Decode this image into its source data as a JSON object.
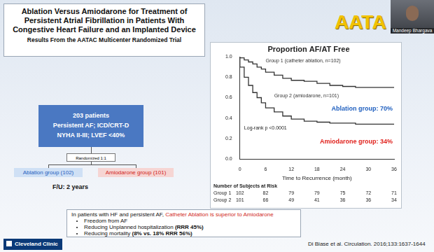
{
  "title": "Ablation Versus Amiodarone for Treatment of Persistent Atrial Fibrillation in Patients With Congestive Heart Failure and an Implanted Device",
  "subtitle": "Results From the AATAC Multicenter Randomized Trial",
  "heading": "AATA",
  "presenter": "Mandeep Bhargava",
  "flow": {
    "population": [
      "203 patients",
      "Persistent AF; ICD/CRT-D",
      "NYHA II-III; LVEF <40%"
    ],
    "randomized": "Randomized 1:1",
    "arms": [
      "Ablation group (102)",
      "Amiodarone group (101)"
    ],
    "follow_up": "F/U: 2 years"
  },
  "chart_data": {
    "type": "line",
    "title": "Proportion AF/AT Free",
    "x_label": "Time to Recurrence (month)",
    "line_style": "stepped",
    "grid": false,
    "x": [
      0,
      1,
      2,
      3,
      4,
      5,
      6,
      8,
      10,
      12,
      15,
      18,
      21,
      24,
      27,
      30,
      33,
      36
    ],
    "series": [
      {
        "name": "Group 1 (catheter ablation, n=102)",
        "color": "#333333",
        "values": [
          1.0,
          0.99,
          0.97,
          0.95,
          0.93,
          0.9,
          0.88,
          0.85,
          0.82,
          0.79,
          0.77,
          0.76,
          0.74,
          0.72,
          0.71,
          0.7,
          0.7,
          0.7
        ]
      },
      {
        "name": "Group 2 (amiodarone, n=101)",
        "color": "#333333",
        "values": [
          1.0,
          0.9,
          0.8,
          0.72,
          0.65,
          0.6,
          0.55,
          0.5,
          0.46,
          0.42,
          0.39,
          0.37,
          0.36,
          0.35,
          0.35,
          0.34,
          0.34,
          0.34
        ]
      }
    ],
    "xlim": [
      0,
      36
    ],
    "xticks": [
      0,
      6,
      12,
      18,
      24,
      30,
      36
    ],
    "ylim": [
      0,
      1
    ],
    "yticks": [
      {
        "value": 0,
        "label": "0.0"
      },
      0.2,
      0.4,
      0.6,
      0.8,
      {
        "value": 1,
        "label": "1.0"
      }
    ],
    "annotations": [
      {
        "text": "Log-rank p <0.0001",
        "color": "#222222"
      },
      {
        "text": "Ablation group: 70%",
        "color": "#1f5fbf"
      },
      {
        "text": "Amiodarone group: 34%",
        "color": "#e0201b"
      }
    ],
    "at_risk": {
      "title": "Number of Subjects at Risk",
      "rows": [
        {
          "label": "Group 1",
          "values": [
            102,
            82,
            79,
            79,
            75,
            72,
            71
          ]
        },
        {
          "label": "Group 2",
          "values": [
            101,
            66,
            49,
            41,
            36,
            36,
            34
          ]
        }
      ]
    }
  },
  "conclusion": {
    "lead": "In patients with HF and persistent AF,",
    "emphasis": "Catheter Ablation is superior to Amiodarone",
    "bullets": [
      {
        "text": "Freedom from AF"
      },
      {
        "text": "Reducing Unplanned hospitalization",
        "bold": "(RRR 45%)"
      },
      {
        "text": "Reducing mortality",
        "bold": "(8% vs. 18% RRR 56%)"
      }
    ]
  },
  "footer": {
    "logo": "Cleveland Clinic",
    "citation": "Di Biase et al. Circulation. 2016;133:1637-1644"
  }
}
